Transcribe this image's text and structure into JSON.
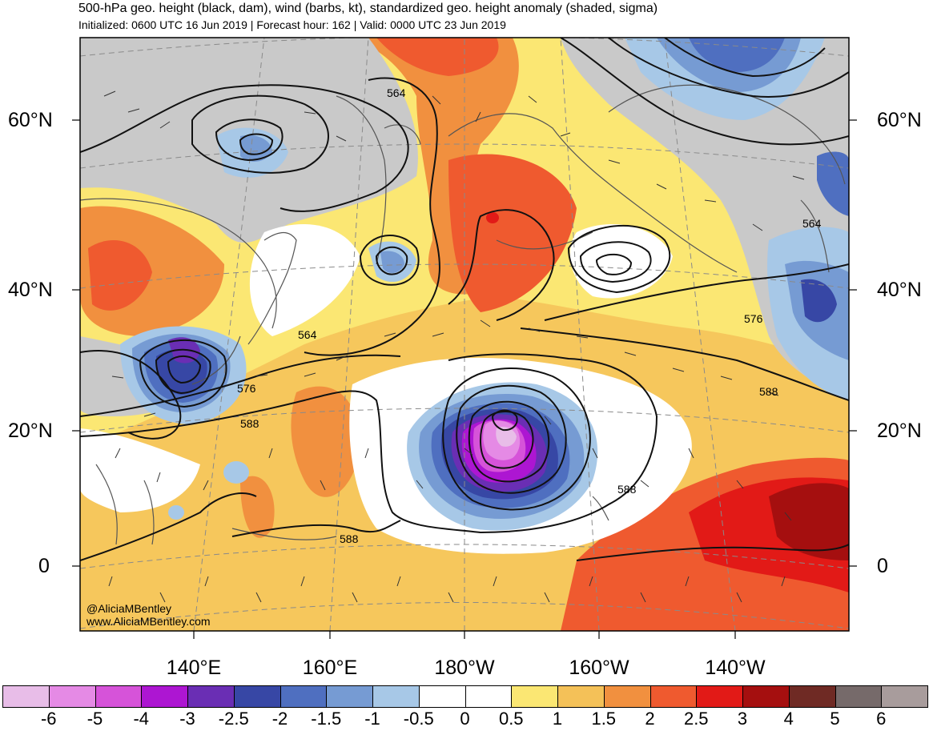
{
  "title": {
    "line1": "500-hPa geo. height (black, dam), wind (barbs, kt), standardized geo. height anomaly (shaded, sigma)",
    "line2": "Initialized: 0600 UTC 16 Jun 2019 | Forecast hour: 162 | Valid: 0000 UTC 23 Jun 2019"
  },
  "lat_labels": {
    "left": [
      "60°N",
      "40°N",
      "20°N",
      "0"
    ],
    "right": [
      "60°N",
      "40°N",
      "20°N",
      "0"
    ]
  },
  "lon_labels": [
    "140°E",
    "160°E",
    "180°W",
    "160°W",
    "140°W"
  ],
  "contour_labels": [
    "564",
    "564",
    "564",
    "576",
    "576",
    "588",
    "588",
    "588",
    "588"
  ],
  "credit": {
    "handle": "@AliciaMBentley",
    "website": "www.AliciaMBentley.com"
  },
  "colorbar": {
    "colors": [
      "#e8bde8",
      "#e58ae5",
      "#d653d9",
      "#ad16d2",
      "#6a2eb4",
      "#3747a5",
      "#4f6fc0",
      "#769bd3",
      "#a7c8e7",
      "#ffffff",
      "#ffffff",
      "#fbe773",
      "#f4c158",
      "#f1903f",
      "#ef5a2f",
      "#e21a17",
      "#a50f0f",
      "#6f2a24",
      "#766a6a",
      "#a89c9c"
    ],
    "labels": [
      "-6",
      "-5",
      "-4",
      "-3",
      "-2.5",
      "-2",
      "-1.5",
      "-1",
      "-0.5",
      "0",
      "0.5",
      "1",
      "1.5",
      "2",
      "2.5",
      "3",
      "4",
      "5",
      "6"
    ]
  },
  "legend": {
    "units": "sigma"
  }
}
